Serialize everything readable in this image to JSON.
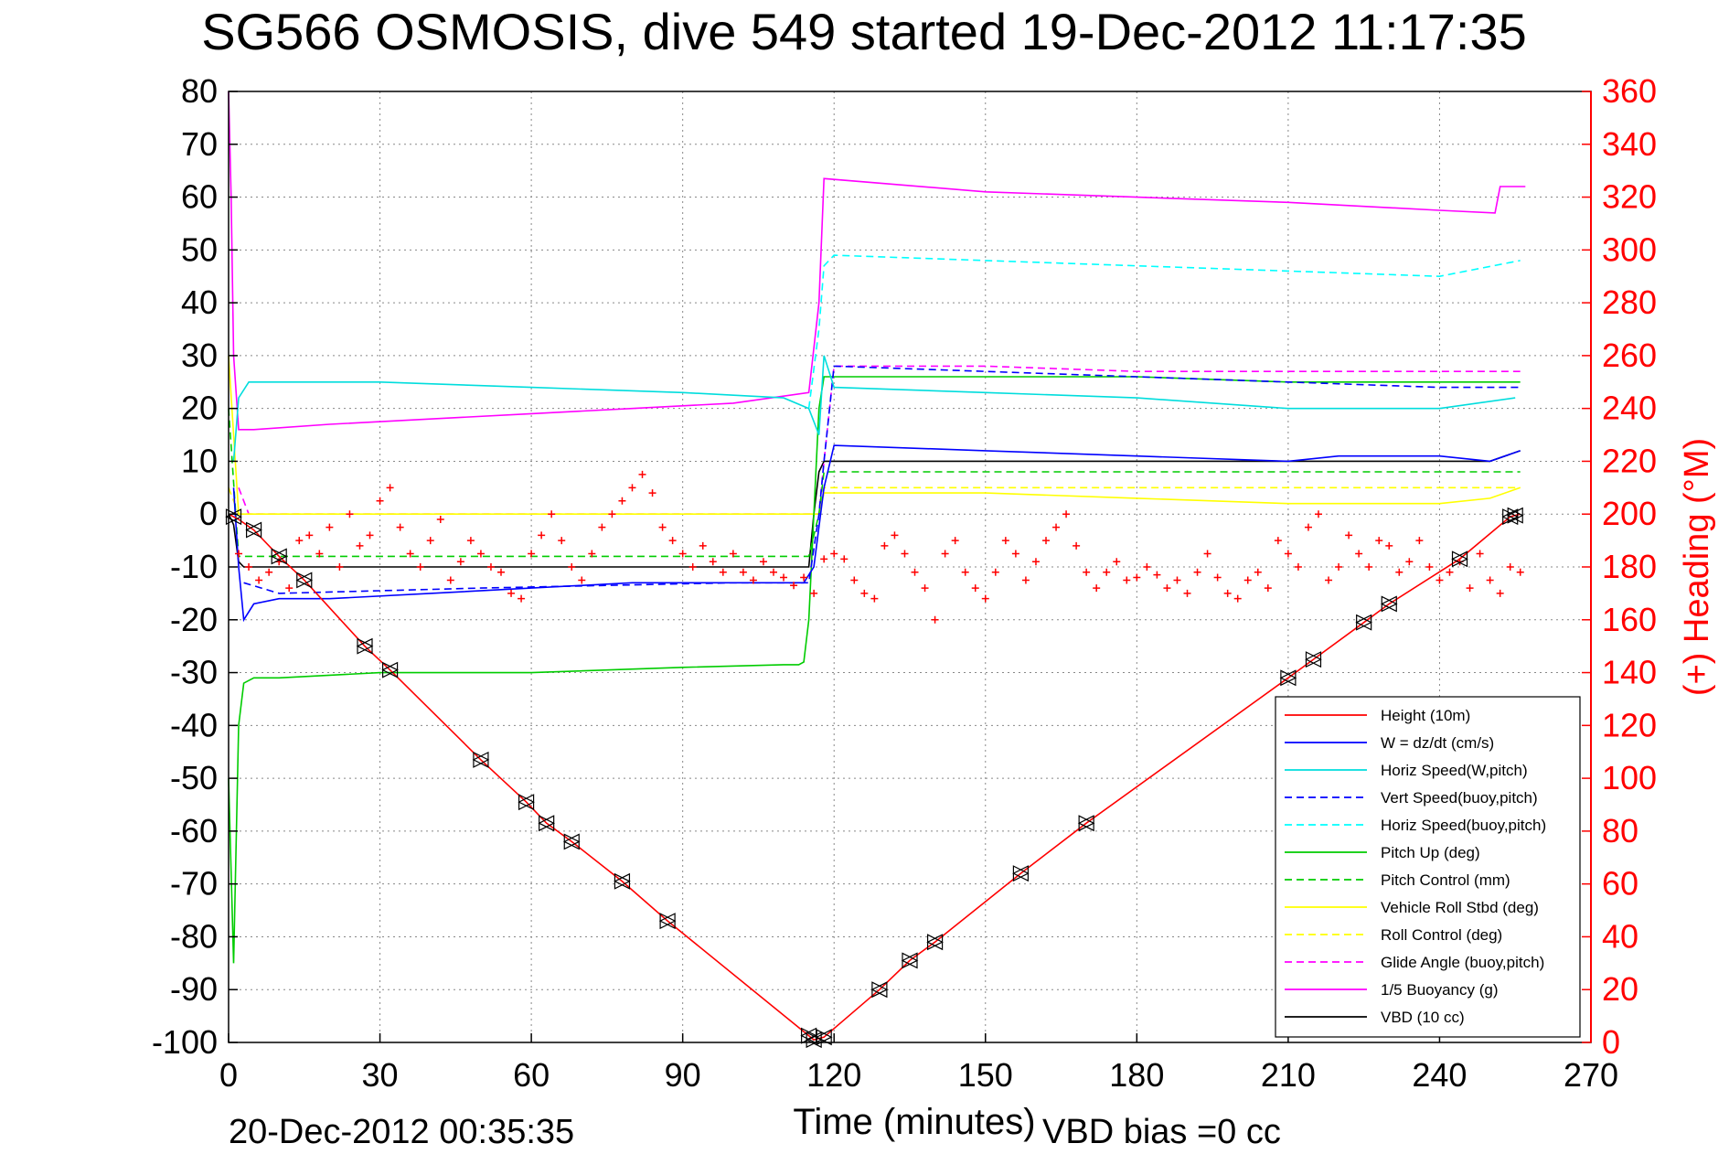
{
  "chart_data": {
    "type": "line",
    "title": "SG566 OSMOSIS, dive 549 started 19-Dec-2012 11:17:35",
    "xlabel": "Time (minutes)",
    "ylabel": "",
    "y2label": "(+) Heading (°M)",
    "xlim": [
      0,
      270
    ],
    "ylim": [
      -100,
      80
    ],
    "y2lim": [
      0,
      360
    ],
    "xticks": [
      "0",
      "30",
      "60",
      "90",
      "120",
      "150",
      "180",
      "210",
      "240",
      "270"
    ],
    "yticks": [
      "80",
      "70",
      "60",
      "50",
      "40",
      "30",
      "20",
      "10",
      "0",
      "-10",
      "-20",
      "-30",
      "-40",
      "-50",
      "-60",
      "-70",
      "-80",
      "-90",
      "-100"
    ],
    "y2ticks": [
      "360",
      "340",
      "320",
      "300",
      "280",
      "260",
      "240",
      "220",
      "200",
      "180",
      "160",
      "140",
      "120",
      "100",
      "80",
      "60",
      "40",
      "20",
      "0"
    ],
    "grid": true,
    "legend_position": "bottom-right",
    "end_time_label": "20-Dec-2012 00:35:35",
    "vbd_bias_label": "VBD bias =0 cc",
    "series": [
      {
        "name": "Height (10m)",
        "color": "#ff0000",
        "style": "solid",
        "x": [
          0,
          2,
          5,
          10,
          15,
          27,
          32,
          50,
          59,
          63,
          68,
          78,
          87,
          116,
          118,
          129,
          135,
          140,
          157,
          170,
          210,
          215,
          225,
          230,
          244,
          254,
          256
        ],
        "y": [
          0,
          -1,
          -3,
          -8,
          -12.5,
          -25,
          -29.5,
          -46.5,
          -54.5,
          -58.5,
          -62,
          -69.5,
          -77,
          -99.5,
          -99,
          -90,
          -84.5,
          -81,
          -68,
          -58.5,
          -31,
          -27.5,
          -20.5,
          -17,
          -8.5,
          -0.5,
          0
        ]
      },
      {
        "name": "W = dz/dt (cm/s)",
        "color": "#0000ff",
        "style": "solid",
        "x": [
          1,
          2,
          3,
          5,
          10,
          20,
          40,
          60,
          80,
          100,
          114,
          116,
          118,
          120,
          150,
          180,
          210,
          220,
          240,
          250,
          256
        ],
        "y": [
          5,
          -10,
          -20,
          -17,
          -16,
          -16,
          -15,
          -14,
          -13,
          -13,
          -13,
          -10,
          5,
          13,
          12,
          11,
          10,
          11,
          11,
          10,
          12
        ]
      },
      {
        "name": "Horiz Speed(W,pitch)",
        "color": "#00dddd",
        "style": "solid",
        "x": [
          1,
          2,
          4,
          10,
          30,
          60,
          90,
          110,
          115,
          117,
          118,
          120,
          150,
          180,
          210,
          240,
          255
        ],
        "y": [
          10,
          22,
          25,
          25,
          25,
          24,
          23,
          22,
          20,
          15,
          30,
          24,
          23,
          22,
          20,
          20,
          22
        ]
      },
      {
        "name": "Vert Speed(buoy,pitch)",
        "color": "#0000ff",
        "style": "dashed",
        "x": [
          3,
          10,
          50,
          100,
          115,
          117,
          118,
          120,
          150,
          180,
          210,
          240,
          256
        ],
        "y": [
          -13,
          -15,
          -14,
          -13,
          -13,
          0,
          10,
          28,
          27,
          26,
          25,
          24,
          24
        ]
      },
      {
        "name": "Horiz Speed(buoy,pitch)",
        "color": "#00ffff",
        "style": "dashed",
        "x": [
          115,
          117,
          118,
          120,
          150,
          180,
          210,
          240,
          256
        ],
        "y": [
          20,
          35,
          47,
          49,
          48,
          47,
          46,
          45,
          48
        ]
      },
      {
        "name": "Pitch Up (deg)",
        "color": "#00cc00",
        "style": "solid",
        "x": [
          0,
          1,
          2,
          3,
          5,
          10,
          30,
          60,
          90,
          110,
          113,
          114,
          115,
          116,
          117,
          118,
          120,
          150,
          180,
          210,
          240,
          256
        ],
        "y": [
          -50,
          -85,
          -40,
          -32,
          -31,
          -31,
          -30,
          -30,
          -29,
          -28.5,
          -28.5,
          -28,
          -20,
          0,
          20,
          26,
          26,
          26,
          26,
          25,
          25,
          25
        ]
      },
      {
        "name": "Pitch Control (mm)",
        "color": "#00cc00",
        "style": "dashed",
        "x": [
          0,
          2,
          4,
          115,
          117,
          118,
          256
        ],
        "y": [
          20,
          -8,
          -8,
          -8,
          0,
          8,
          8
        ]
      },
      {
        "name": "Vehicle Roll Stbd (deg)",
        "color": "#ffff00",
        "style": "solid",
        "x": [
          0,
          2,
          5,
          115,
          117,
          118,
          150,
          180,
          210,
          240,
          250,
          256
        ],
        "y": [
          30,
          0,
          0,
          0,
          0,
          4,
          4,
          3,
          2,
          2,
          3,
          5
        ]
      },
      {
        "name": "Roll Control (deg)",
        "color": "#ffff00",
        "style": "dashed",
        "x": [
          0,
          2,
          5,
          115,
          117,
          118,
          256
        ],
        "y": [
          5,
          0,
          0,
          0,
          0,
          5,
          5
        ]
      },
      {
        "name": "Glide Angle (buoy,pitch)",
        "color": "#ff00ff",
        "style": "dashed",
        "x": [
          2,
          4,
          115,
          117,
          118,
          120,
          150,
          180,
          210,
          240,
          256
        ],
        "y": [
          5,
          0,
          0,
          0,
          10,
          28,
          28,
          27,
          27,
          27,
          27
        ]
      },
      {
        "name": "1/5 Buoyancy (g)",
        "color": "#ff00ff",
        "style": "solid",
        "x": [
          0,
          0.5,
          1,
          2,
          5,
          20,
          40,
          60,
          80,
          100,
          115,
          117,
          118,
          150,
          180,
          210,
          240,
          251,
          252,
          255,
          256,
          257
        ],
        "y": [
          80,
          60,
          30,
          16,
          16,
          17,
          18,
          19,
          20,
          21,
          23,
          40,
          63.5,
          61,
          60,
          59,
          57.5,
          57,
          62,
          62,
          62,
          62
        ]
      },
      {
        "name": "VBD (10 cc)",
        "color": "#000000",
        "style": "solid",
        "x": [
          0,
          1,
          2,
          3,
          5,
          10,
          115,
          116,
          117,
          118,
          120,
          250,
          256
        ],
        "y": [
          0,
          -2,
          -9,
          -10,
          -10,
          -10,
          -10,
          0,
          8,
          10,
          10,
          10,
          12
        ]
      }
    ],
    "heading_marks": {
      "name": "(+) Heading",
      "color": "#ff0000",
      "axis": "right",
      "x": [
        2,
        4,
        6,
        8,
        10,
        12,
        14,
        16,
        18,
        20,
        22,
        24,
        26,
        28,
        30,
        32,
        34,
        36,
        38,
        40,
        42,
        44,
        46,
        48,
        50,
        52,
        54,
        56,
        58,
        60,
        62,
        64,
        66,
        68,
        70,
        72,
        74,
        76,
        78,
        80,
        82,
        84,
        86,
        88,
        90,
        92,
        94,
        96,
        98,
        100,
        102,
        104,
        106,
        108,
        110,
        112,
        114,
        116,
        118,
        120,
        122,
        124,
        126,
        128,
        130,
        132,
        134,
        136,
        138,
        140,
        142,
        144,
        146,
        148,
        150,
        152,
        154,
        156,
        158,
        160,
        162,
        164,
        166,
        168,
        170,
        172,
        174,
        176,
        178,
        180,
        182,
        184,
        186,
        188,
        190,
        192,
        194,
        196,
        198,
        200,
        202,
        204,
        206,
        208,
        210,
        212,
        214,
        216,
        218,
        220,
        222,
        224,
        226,
        228,
        230,
        232,
        234,
        236,
        238,
        240,
        242,
        244,
        246,
        248,
        250,
        252,
        254,
        256
      ],
      "y": [
        185,
        180,
        175,
        178,
        182,
        172,
        190,
        192,
        185,
        195,
        180,
        200,
        188,
        192,
        205,
        210,
        195,
        185,
        180,
        190,
        198,
        175,
        182,
        190,
        185,
        180,
        178,
        170,
        168,
        185,
        192,
        200,
        190,
        180,
        175,
        185,
        195,
        200,
        205,
        210,
        215,
        208,
        195,
        190,
        185,
        180,
        188,
        182,
        178,
        185,
        178,
        175,
        182,
        178,
        176,
        173,
        176,
        170,
        183,
        185,
        183,
        175,
        170,
        168,
        188,
        192,
        185,
        178,
        172,
        160,
        185,
        190,
        178,
        172,
        168,
        178,
        190,
        185,
        175,
        182,
        190,
        195,
        200,
        188,
        178,
        172,
        178,
        182,
        175,
        176,
        180,
        177,
        172,
        175,
        170,
        178,
        185,
        176,
        170,
        168,
        175,
        178,
        172,
        190,
        185,
        180,
        195,
        200,
        175,
        180,
        192,
        185,
        180,
        190,
        188,
        178,
        182,
        190,
        180,
        175,
        178,
        182,
        172,
        185,
        175,
        170,
        180,
        178
      ]
    },
    "dive_markers": {
      "name": "depth markers",
      "x": [
        1,
        5,
        10,
        15,
        27,
        32,
        50,
        59,
        63,
        68,
        78,
        87,
        115,
        116,
        118,
        129,
        135,
        140,
        157,
        170,
        210,
        215,
        225,
        230,
        244,
        254,
        255
      ]
    }
  }
}
